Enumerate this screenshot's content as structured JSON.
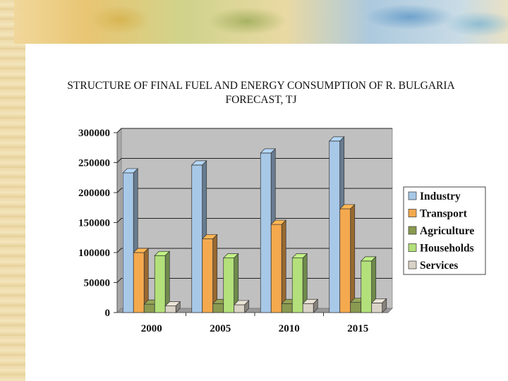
{
  "title": "STRUCTURE OF FINAL FUEL AND ENERGY  CONSUMPTION OF R. BULGARIA FORECAST, TJ",
  "chart_data": {
    "type": "bar",
    "title": "STRUCTURE OF FINAL FUEL AND ENERGY  CONSUMPTION OF R. BULGARIA FORECAST, TJ",
    "categories": [
      "2000",
      "2005",
      "2010",
      "2015"
    ],
    "series": [
      {
        "name": "Industry",
        "color": "#a8c8e8",
        "values": [
          233000,
          246000,
          266000,
          286000
        ]
      },
      {
        "name": "Transport",
        "color": "#f5a94e",
        "values": [
          100000,
          123000,
          147000,
          173000
        ]
      },
      {
        "name": "Agriculture",
        "color": "#8a9a50",
        "values": [
          14000,
          15000,
          15000,
          17000
        ]
      },
      {
        "name": "Households",
        "color": "#b3e07a",
        "values": [
          95000,
          91000,
          91000,
          86000
        ]
      },
      {
        "name": "Services",
        "color": "#d9d2c6",
        "values": [
          11000,
          13000,
          15000,
          16000
        ]
      }
    ],
    "yticks": [
      "0",
      "50000",
      "100000",
      "150000",
      "200000",
      "250000",
      "300000"
    ],
    "ylim": [
      0,
      300000
    ],
    "xlabel": "",
    "ylabel": "",
    "grid": true,
    "legend": "right"
  }
}
